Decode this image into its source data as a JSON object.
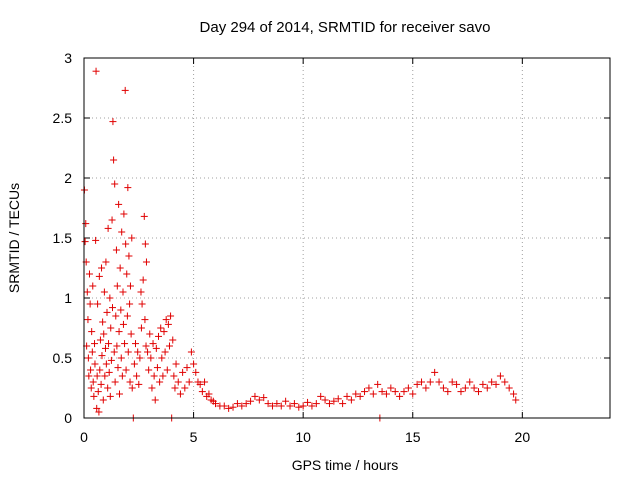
{
  "chart_data": {
    "type": "scatter",
    "title": "Day 294 of 2014, SRMTID for receiver savo",
    "xlabel": "GPS time / hours",
    "ylabel": "SRMTID / TECUs",
    "xlim": [
      0,
      24
    ],
    "ylim": [
      0,
      3
    ],
    "xticks": [
      0,
      5,
      10,
      15,
      20
    ],
    "xtick_labels": [
      "0",
      "5",
      "10",
      "15",
      "20"
    ],
    "yticks": [
      0,
      0.5,
      1,
      1.5,
      2,
      2.5,
      3
    ],
    "ytick_labels": [
      "0",
      "0.5",
      "1",
      "1.5",
      "2",
      "2.5",
      "3"
    ],
    "grid": true,
    "marker": "+",
    "color": "#e00000",
    "series": [
      {
        "name": "SRMTID",
        "points": [
          [
            0.02,
            1.9
          ],
          [
            0.05,
            1.47
          ],
          [
            0.08,
            1.62
          ],
          [
            0.1,
            1.3
          ],
          [
            0.12,
            0.6
          ],
          [
            0.15,
            1.05
          ],
          [
            0.18,
            0.82
          ],
          [
            0.2,
            0.5
          ],
          [
            0.22,
            0.35
          ],
          [
            0.25,
            1.2
          ],
          [
            0.28,
            0.95
          ],
          [
            0.3,
            0.4
          ],
          [
            0.33,
            0.25
          ],
          [
            0.35,
            0.72
          ],
          [
            0.38,
            0.55
          ],
          [
            0.4,
            1.1
          ],
          [
            0.42,
            0.3
          ],
          [
            0.45,
            0.18
          ],
          [
            0.48,
            0.62
          ],
          [
            0.5,
            0.45
          ],
          [
            0.53,
            1.48
          ],
          [
            0.55,
            2.89
          ],
          [
            0.58,
            0.08
          ],
          [
            0.6,
            0.35
          ],
          [
            0.62,
            0.95
          ],
          [
            0.65,
            0.22
          ],
          [
            0.68,
            0.05
          ],
          [
            0.7,
            1.18
          ],
          [
            0.72,
            0.4
          ],
          [
            0.75,
            0.65
          ],
          [
            0.78,
            0.28
          ],
          [
            0.8,
            1.25
          ],
          [
            0.82,
            0.52
          ],
          [
            0.85,
            0.8
          ],
          [
            0.88,
            0.15
          ],
          [
            0.9,
            0.7
          ],
          [
            0.93,
            1.05
          ],
          [
            0.95,
            0.35
          ],
          [
            0.98,
            0.58
          ],
          [
            1.0,
            1.3
          ],
          [
            1.02,
            0.45
          ],
          [
            1.05,
            0.88
          ],
          [
            1.08,
            0.25
          ],
          [
            1.1,
            1.58
          ],
          [
            1.12,
            0.62
          ],
          [
            1.15,
            0.38
          ],
          [
            1.18,
            1.0
          ],
          [
            1.2,
            0.18
          ],
          [
            1.22,
            0.75
          ],
          [
            1.25,
            0.48
          ],
          [
            1.28,
            1.65
          ],
          [
            1.3,
            0.92
          ],
          [
            1.32,
            2.47
          ],
          [
            1.35,
            2.15
          ],
          [
            1.38,
            0.55
          ],
          [
            1.4,
            1.95
          ],
          [
            1.42,
            0.3
          ],
          [
            1.45,
            0.85
          ],
          [
            1.48,
            1.4
          ],
          [
            1.5,
            0.6
          ],
          [
            1.52,
            1.1
          ],
          [
            1.55,
            0.42
          ],
          [
            1.58,
            1.78
          ],
          [
            1.6,
            0.72
          ],
          [
            1.62,
            0.2
          ],
          [
            1.65,
            1.25
          ],
          [
            1.68,
            0.9
          ],
          [
            1.7,
            0.5
          ],
          [
            1.72,
            1.55
          ],
          [
            1.75,
            0.35
          ],
          [
            1.78,
            1.05
          ],
          [
            1.8,
            0.78
          ],
          [
            1.82,
            1.7
          ],
          [
            1.85,
            0.62
          ],
          [
            1.88,
            2.73
          ],
          [
            1.9,
            1.45
          ],
          [
            1.92,
            0.4
          ],
          [
            1.95,
            1.2
          ],
          [
            1.98,
            0.85
          ],
          [
            2.0,
            1.92
          ],
          [
            2.02,
            0.55
          ],
          [
            2.05,
            1.35
          ],
          [
            2.08,
            0.95
          ],
          [
            2.1,
            0.3
          ],
          [
            2.12,
            1.1
          ],
          [
            2.15,
            0.7
          ],
          [
            2.18,
            1.5
          ],
          [
            2.2,
            0.25
          ],
          [
            2.25,
            0.0
          ],
          [
            2.3,
            0.45
          ],
          [
            2.35,
            0.62
          ],
          [
            2.4,
            0.35
          ],
          [
            2.45,
            0.55
          ],
          [
            2.5,
            0.28
          ],
          [
            2.55,
            0.5
          ],
          [
            2.6,
            1.05
          ],
          [
            2.62,
            0.75
          ],
          [
            2.65,
            0.95
          ],
          [
            2.7,
            1.15
          ],
          [
            2.75,
            1.68
          ],
          [
            2.78,
            0.82
          ],
          [
            2.8,
            1.45
          ],
          [
            2.83,
            0.6
          ],
          [
            2.85,
            1.3
          ],
          [
            2.9,
            0.55
          ],
          [
            2.95,
            0.4
          ],
          [
            3.0,
            0.7
          ],
          [
            3.05,
            0.5
          ],
          [
            3.1,
            0.25
          ],
          [
            3.15,
            0.62
          ],
          [
            3.2,
            0.35
          ],
          [
            3.25,
            0.15
          ],
          [
            3.3,
            0.58
          ],
          [
            3.35,
            0.42
          ],
          [
            3.4,
            0.68
          ],
          [
            3.45,
            0.3
          ],
          [
            3.5,
            0.75
          ],
          [
            3.55,
            0.5
          ],
          [
            3.6,
            0.35
          ],
          [
            3.65,
            0.72
          ],
          [
            3.7,
            0.55
          ],
          [
            3.75,
            0.82
          ],
          [
            3.8,
            0.4
          ],
          [
            3.85,
            0.78
          ],
          [
            3.9,
            0.6
          ],
          [
            3.95,
            0.85
          ],
          [
            4.0,
            0.0
          ],
          [
            4.05,
            0.65
          ],
          [
            4.1,
            0.35
          ],
          [
            4.15,
            0.25
          ],
          [
            4.2,
            0.45
          ],
          [
            4.3,
            0.3
          ],
          [
            4.4,
            0.2
          ],
          [
            4.5,
            0.38
          ],
          [
            4.6,
            0.25
          ],
          [
            4.7,
            0.42
          ],
          [
            4.8,
            0.3
          ],
          [
            4.9,
            0.55
          ],
          [
            5.0,
            0.45
          ],
          [
            5.1,
            0.38
          ],
          [
            5.2,
            0.3
          ],
          [
            5.3,
            0.28
          ],
          [
            5.4,
            0.22
          ],
          [
            5.5,
            0.3
          ],
          [
            5.6,
            0.18
          ],
          [
            5.7,
            0.2
          ],
          [
            5.8,
            0.15
          ],
          [
            5.9,
            0.14
          ],
          [
            6.0,
            0.12
          ],
          [
            6.2,
            0.1
          ],
          [
            6.4,
            0.1
          ],
          [
            6.6,
            0.08
          ],
          [
            6.8,
            0.09
          ],
          [
            7.0,
            0.12
          ],
          [
            7.2,
            0.1
          ],
          [
            7.4,
            0.12
          ],
          [
            7.6,
            0.14
          ],
          [
            7.8,
            0.18
          ],
          [
            8.0,
            0.15
          ],
          [
            8.2,
            0.17
          ],
          [
            8.4,
            0.12
          ],
          [
            8.6,
            0.1
          ],
          [
            8.8,
            0.12
          ],
          [
            9.0,
            0.1
          ],
          [
            9.2,
            0.14
          ],
          [
            9.4,
            0.1
          ],
          [
            9.6,
            0.12
          ],
          [
            9.8,
            0.09
          ],
          [
            10.0,
            0.1
          ],
          [
            10.2,
            0.13
          ],
          [
            10.4,
            0.1
          ],
          [
            10.6,
            0.12
          ],
          [
            10.8,
            0.18
          ],
          [
            11.0,
            0.15
          ],
          [
            11.2,
            0.12
          ],
          [
            11.4,
            0.14
          ],
          [
            11.6,
            0.16
          ],
          [
            11.8,
            0.12
          ],
          [
            12.0,
            0.18
          ],
          [
            12.2,
            0.15
          ],
          [
            12.4,
            0.2
          ],
          [
            12.6,
            0.18
          ],
          [
            12.8,
            0.22
          ],
          [
            13.0,
            0.25
          ],
          [
            13.2,
            0.2
          ],
          [
            13.4,
            0.28
          ],
          [
            13.5,
            0.0
          ],
          [
            13.6,
            0.22
          ],
          [
            13.8,
            0.2
          ],
          [
            14.0,
            0.25
          ],
          [
            14.2,
            0.22
          ],
          [
            14.4,
            0.18
          ],
          [
            14.6,
            0.22
          ],
          [
            14.8,
            0.25
          ],
          [
            15.0,
            0.2
          ],
          [
            15.2,
            0.28
          ],
          [
            15.4,
            0.3
          ],
          [
            15.6,
            0.25
          ],
          [
            15.8,
            0.3
          ],
          [
            16.0,
            0.38
          ],
          [
            16.2,
            0.3
          ],
          [
            16.4,
            0.25
          ],
          [
            16.6,
            0.22
          ],
          [
            16.8,
            0.3
          ],
          [
            17.0,
            0.28
          ],
          [
            17.2,
            0.22
          ],
          [
            17.4,
            0.25
          ],
          [
            17.6,
            0.3
          ],
          [
            17.8,
            0.25
          ],
          [
            18.0,
            0.22
          ],
          [
            18.2,
            0.28
          ],
          [
            18.4,
            0.25
          ],
          [
            18.6,
            0.3
          ],
          [
            18.8,
            0.28
          ],
          [
            19.0,
            0.35
          ],
          [
            19.2,
            0.3
          ],
          [
            19.4,
            0.25
          ],
          [
            19.6,
            0.2
          ],
          [
            19.7,
            0.15
          ]
        ]
      }
    ]
  }
}
